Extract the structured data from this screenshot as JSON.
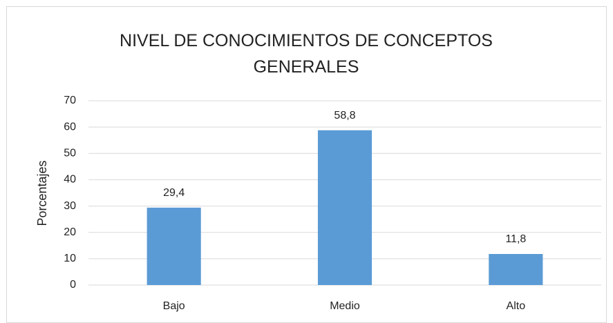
{
  "chart_data": {
    "type": "bar",
    "title": "NIVEL DE CONOCIMIENTOS DE CONCEPTOS GENERALES",
    "y_label": "Porcentajes",
    "categories": [
      "Bajo",
      "Medio",
      "Alto"
    ],
    "values": [
      29.4,
      58.8,
      11.8
    ],
    "value_labels": [
      "29,4",
      "58,8",
      "11,8"
    ],
    "color": "#5b9bd5",
    "ylim": [
      0,
      70
    ],
    "yticks": [
      0,
      10,
      20,
      30,
      40,
      50,
      60,
      70
    ],
    "grid": true
  }
}
